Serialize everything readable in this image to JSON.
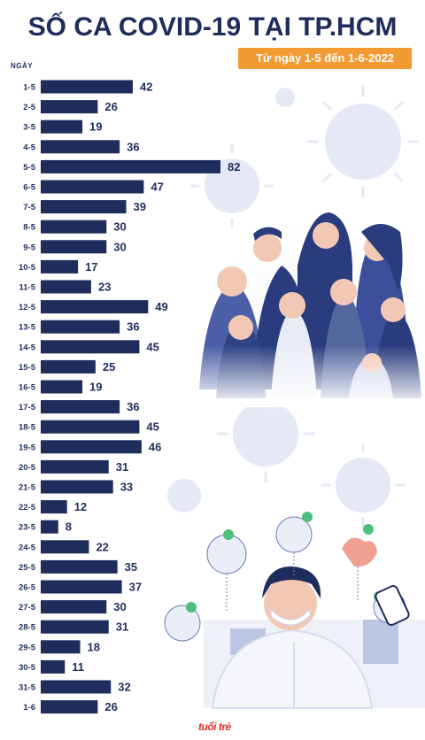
{
  "header": {
    "title": "SỐ CA COVID-19 TẠI TP.HCM",
    "subtitle": "Từ ngày 1-5 đến 1-6-2022",
    "y_axis_header": "NGÀY"
  },
  "colors": {
    "bar": "#1f2d5c",
    "accent": "#f39a32",
    "virus": "#dfe6f4"
  },
  "logo_text": "tuổi trẻ",
  "chart_data": {
    "type": "bar",
    "orientation": "horizontal",
    "title": "SỐ CA COVID-19 TẠI TP.HCM",
    "subtitle": "Từ ngày 1-5 đến 1-6-2022",
    "ylabel": "NGÀY",
    "xlim": [
      0,
      82
    ],
    "grid": false,
    "categories": [
      "1-5",
      "2-5",
      "3-5",
      "4-5",
      "5-5",
      "6-5",
      "7-5",
      "8-5",
      "9-5",
      "10-5",
      "11-5",
      "12-5",
      "13-5",
      "14-5",
      "15-5",
      "16-5",
      "17-5",
      "18-5",
      "19-5",
      "20-5",
      "21-5",
      "22-5",
      "23-5",
      "24-5",
      "25-5",
      "26-5",
      "27-5",
      "28-5",
      "29-5",
      "30-5",
      "31-5",
      "1-6"
    ],
    "values": [
      42,
      26,
      19,
      36,
      82,
      47,
      39,
      30,
      30,
      17,
      23,
      49,
      36,
      45,
      25,
      19,
      36,
      45,
      46,
      31,
      33,
      12,
      8,
      22,
      35,
      37,
      30,
      31,
      18,
      11,
      32,
      26
    ]
  }
}
